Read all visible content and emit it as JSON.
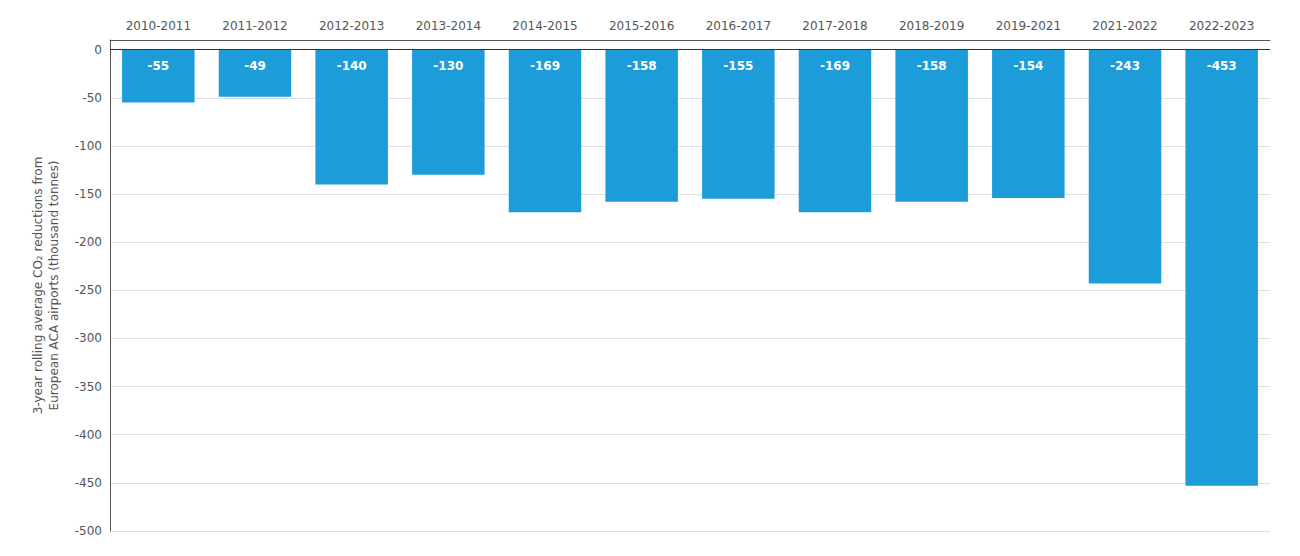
{
  "chart_data": {
    "type": "bar",
    "categories": [
      "2010-2011",
      "2011-2012",
      "2012-2013",
      "2013-2014",
      "2014-2015",
      "2015-2016",
      "2016-2017",
      "2017-2018",
      "2018-2019",
      "2019-2021",
      "2021-2022",
      "2022-2023"
    ],
    "values": [
      -55,
      -49,
      -140,
      -130,
      -169,
      -158,
      -155,
      -169,
      -158,
      -154,
      -243,
      -453
    ],
    "color": "#1C9DD9",
    "ylabel": "3-year rolling average CO₂ reductions from\nEuropean ACA airports (thousand tonnes)",
    "ylim": [
      -500,
      10
    ],
    "yticks": [
      0,
      -50,
      -100,
      -150,
      -200,
      -250,
      -300,
      -350,
      -400,
      -450,
      -500
    ],
    "grid": true,
    "data_labels": true
  }
}
